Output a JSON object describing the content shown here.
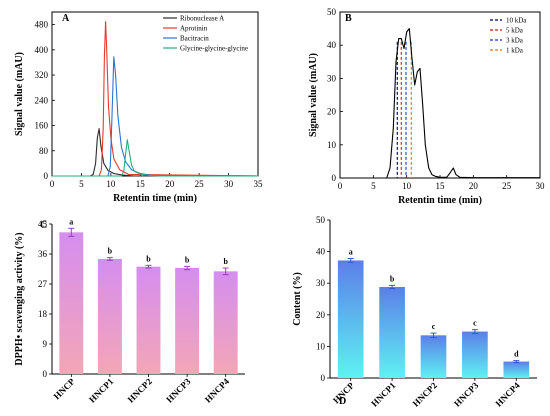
{
  "chart_data": [
    {
      "panel": "A",
      "type": "line",
      "xlabel": "Retentin time (min)",
      "ylabel": "Signal value (mAU)",
      "xlim": [
        0,
        35
      ],
      "ylim": [
        0,
        520
      ],
      "xticks": [
        0,
        5,
        10,
        15,
        20,
        25,
        30,
        35
      ],
      "yticks": [
        0,
        80,
        160,
        240,
        320,
        400,
        480
      ],
      "legend_position": "top-right",
      "series": [
        {
          "name": "Ribonuclease A",
          "color": "#2b2b2b",
          "x": [
            0,
            6.5,
            7.0,
            7.4,
            7.7,
            8.0,
            8.3,
            8.8,
            9.5,
            10.5,
            12,
            14,
            35
          ],
          "y": [
            0,
            0,
            5,
            40,
            120,
            150,
            95,
            40,
            18,
            8,
            3,
            0,
            0
          ]
        },
        {
          "name": "Aprotinin",
          "color": "#e8392f",
          "x": [
            0,
            8.0,
            8.4,
            8.7,
            8.9,
            9.1,
            9.3,
            9.6,
            10.0,
            10.5,
            11.5,
            13,
            35
          ],
          "y": [
            0,
            0,
            20,
            150,
            380,
            490,
            400,
            220,
            120,
            55,
            20,
            5,
            0
          ]
        },
        {
          "name": "Bacitracin",
          "color": "#2a73d9",
          "x": [
            0,
            9.5,
            9.9,
            10.2,
            10.5,
            10.8,
            11.2,
            11.8,
            12.5,
            13.5,
            15,
            17,
            35
          ],
          "y": [
            0,
            0,
            30,
            190,
            378,
            320,
            190,
            90,
            45,
            20,
            8,
            2,
            0
          ]
        },
        {
          "name": "Glycine-glycine-glycine",
          "color": "#22b07a",
          "x": [
            0,
            11.8,
            12.2,
            12.5,
            12.8,
            13.1,
            13.5,
            14.0,
            15,
            16.5,
            18.5,
            35
          ],
          "y": [
            0,
            0,
            15,
            70,
            115,
            80,
            35,
            15,
            6,
            2,
            0,
            0
          ]
        }
      ]
    },
    {
      "panel": "B",
      "type": "line",
      "xlabel": "Retentin time (min)",
      "ylabel": "Signal value (mAU)",
      "xlim": [
        0,
        30
      ],
      "ylim": [
        0,
        50
      ],
      "xticks": [
        0,
        5,
        10,
        15,
        20,
        25,
        30
      ],
      "yticks": [
        0,
        10,
        20,
        30,
        40,
        50
      ],
      "legend_position": "top-right",
      "series": [
        {
          "name": "",
          "color": "#000000",
          "x": [
            0,
            7.0,
            7.5,
            8.0,
            8.4,
            8.8,
            9.2,
            9.6,
            10.0,
            10.4,
            10.8,
            11.2,
            11.6,
            12.0,
            12.4,
            12.8,
            13.3,
            13.8,
            14.3,
            15,
            16,
            16.5,
            17.0,
            17.4,
            18,
            20,
            30
          ],
          "y": [
            0,
            0,
            3,
            15,
            35,
            42,
            42,
            39,
            44,
            45,
            36,
            28,
            32,
            33,
            22,
            10,
            3,
            1,
            0.5,
            0.2,
            0.2,
            1.5,
            3,
            1,
            0.2,
            0.1,
            0.1
          ]
        }
      ],
      "markers": [
        {
          "name": "10 kDa",
          "color": "#1a2a6c",
          "x": 8.6
        },
        {
          "name": "5 kDa",
          "color": "#d6433b",
          "x": 9.2
        },
        {
          "name": "3 kDa",
          "color": "#3d54c9",
          "x": 9.9
        },
        {
          "name": "1 kDa",
          "color": "#f28a2d",
          "x": 10.7
        }
      ]
    },
    {
      "panel": "C",
      "type": "bar",
      "ylabel": "DPPH• scavenging activity (%)",
      "ylim": [
        0,
        45
      ],
      "yticks": [
        0,
        9,
        18,
        27,
        36,
        45
      ],
      "categories": [
        "HNCP",
        "HNCP1",
        "HNCP2",
        "HNCP3",
        "HNCP4"
      ],
      "values": [
        42.5,
        34.5,
        32.2,
        31.8,
        30.8
      ],
      "errors": [
        1.2,
        0.4,
        0.4,
        0.5,
        1.0
      ],
      "letters": [
        "a",
        "b",
        "b",
        "b",
        "b"
      ],
      "gradient": [
        "#d58df0",
        "#f4a6b5"
      ]
    },
    {
      "panel": "D",
      "type": "bar",
      "ylabel": "Content (%)",
      "ylim": [
        0,
        50
      ],
      "yticks": [
        0,
        10,
        20,
        30,
        40,
        50
      ],
      "categories": [
        "HNCP",
        "HNCP1",
        "HNCP2",
        "HNCP3",
        "HNCP4"
      ],
      "values": [
        37.2,
        28.8,
        13.5,
        14.7,
        5.2
      ],
      "errors": [
        0.6,
        0.5,
        0.7,
        0.6,
        0.3
      ],
      "letters": [
        "a",
        "b",
        "c",
        "c",
        "d"
      ],
      "gradient": [
        "#5b7fe8",
        "#5ef2f2"
      ]
    }
  ]
}
